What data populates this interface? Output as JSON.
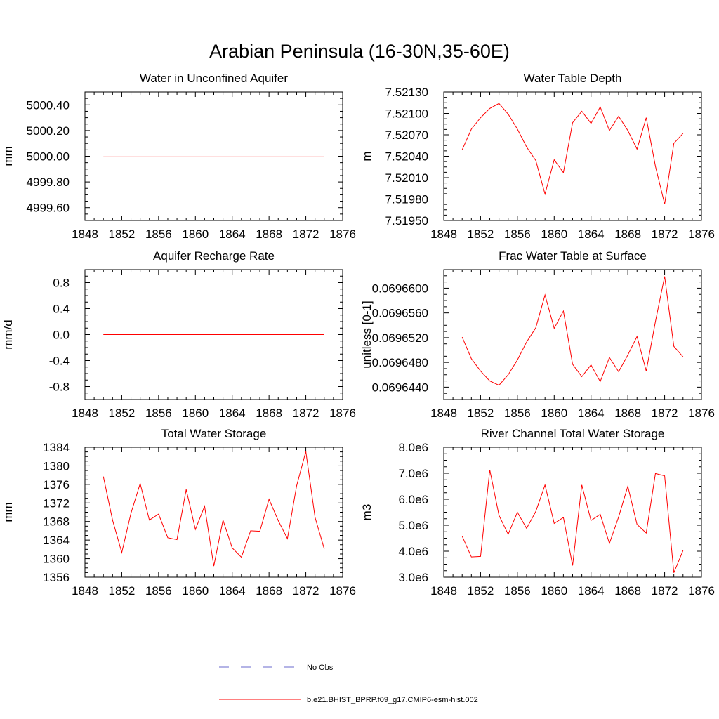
{
  "figure": {
    "title": "Arabian Peninsula (16-30N,35-60E)"
  },
  "legend": {
    "items": [
      {
        "label": "No Obs",
        "color": "#6a6acd",
        "dash": true
      },
      {
        "label": "b.e21.BHIST_BPRP.f09_g17.CMIP6-esm-hist.002",
        "color": "#ff0000",
        "dash": false
      }
    ]
  },
  "chart_data": [
    {
      "type": "line",
      "title": "Water in Unconfined Aquifer",
      "xlabel": "",
      "ylabel": "mm",
      "xlim": [
        1848,
        1876
      ],
      "ylim": [
        4999.5,
        5000.5
      ],
      "xticks": [
        1848,
        1852,
        1856,
        1860,
        1864,
        1868,
        1872,
        1876
      ],
      "yticks": [
        4999.6,
        4999.8,
        5000.0,
        5000.2,
        5000.4
      ],
      "ytick_labels": [
        "4999.60",
        "4999.80",
        "5000.00",
        "5000.20",
        "5000.40"
      ],
      "x": [
        1850,
        1851,
        1852,
        1853,
        1854,
        1855,
        1856,
        1857,
        1858,
        1859,
        1860,
        1861,
        1862,
        1863,
        1864,
        1865,
        1866,
        1867,
        1868,
        1869,
        1870,
        1871,
        1872,
        1873,
        1874
      ],
      "series": [
        {
          "values": [
            4999.995,
            4999.995,
            4999.995,
            4999.995,
            4999.995,
            4999.995,
            4999.995,
            4999.995,
            4999.995,
            4999.995,
            4999.995,
            4999.995,
            4999.995,
            4999.995,
            4999.995,
            4999.995,
            4999.995,
            4999.995,
            4999.995,
            4999.995,
            4999.995,
            4999.995,
            4999.995,
            4999.995,
            4999.995
          ],
          "color": "#ff0000"
        }
      ]
    },
    {
      "type": "line",
      "title": "Water Table Depth",
      "xlabel": "",
      "ylabel": "m",
      "xlim": [
        1848,
        1876
      ],
      "ylim": [
        7.5195,
        7.5213
      ],
      "xticks": [
        1848,
        1852,
        1856,
        1860,
        1864,
        1868,
        1872,
        1876
      ],
      "yticks": [
        7.5195,
        7.5198,
        7.5201,
        7.5204,
        7.5207,
        7.521,
        7.5213
      ],
      "ytick_labels": [
        "7.51950",
        "7.51980",
        "7.52010",
        "7.52040",
        "7.52070",
        "7.52100",
        "7.52130"
      ],
      "x": [
        1850,
        1851,
        1852,
        1853,
        1854,
        1855,
        1856,
        1857,
        1858,
        1859,
        1860,
        1861,
        1862,
        1863,
        1864,
        1865,
        1866,
        1867,
        1868,
        1869,
        1870,
        1871,
        1872,
        1873,
        1874
      ],
      "series": [
        {
          "values": [
            7.52049,
            7.52078,
            7.52094,
            7.52107,
            7.52114,
            7.52099,
            7.52078,
            7.52053,
            7.52034,
            7.51987,
            7.52035,
            7.52017,
            7.52087,
            7.52103,
            7.52086,
            7.52109,
            7.52076,
            7.52096,
            7.52076,
            7.5205,
            7.52094,
            7.52026,
            7.51973,
            7.52058,
            7.52072
          ],
          "color": "#ff0000"
        }
      ]
    },
    {
      "type": "line",
      "title": "Aquifer Recharge Rate",
      "xlabel": "",
      "ylabel": "mm/d",
      "xlim": [
        1848,
        1876
      ],
      "ylim": [
        -1.0,
        1.0
      ],
      "xticks": [
        1848,
        1852,
        1856,
        1860,
        1864,
        1868,
        1872,
        1876
      ],
      "yticks": [
        -0.8,
        -0.4,
        0.0,
        0.4,
        0.8
      ],
      "ytick_labels": [
        "-0.8",
        "-0.4",
        "0.0",
        "0.4",
        "0.8"
      ],
      "x": [
        1850,
        1851,
        1852,
        1853,
        1854,
        1855,
        1856,
        1857,
        1858,
        1859,
        1860,
        1861,
        1862,
        1863,
        1864,
        1865,
        1866,
        1867,
        1868,
        1869,
        1870,
        1871,
        1872,
        1873,
        1874
      ],
      "series": [
        {
          "values": [
            0,
            0,
            0,
            0,
            0,
            0,
            0,
            0,
            0,
            0,
            0,
            0,
            0,
            0,
            0,
            0,
            0,
            0,
            0,
            0,
            0,
            0,
            0,
            0,
            0
          ],
          "color": "#ff0000"
        }
      ]
    },
    {
      "type": "line",
      "title": "Frac Water Table at Surface",
      "xlabel": "",
      "ylabel": "unitless [0-1]",
      "xlim": [
        1848,
        1876
      ],
      "ylim": [
        0.069642,
        0.069663
      ],
      "xticks": [
        1848,
        1852,
        1856,
        1860,
        1864,
        1868,
        1872,
        1876
      ],
      "yticks": [
        0.069644,
        0.069648,
        0.069652,
        0.069656,
        0.06966
      ],
      "ytick_labels": [
        "0.0696440",
        "0.0696480",
        "0.0696520",
        "0.0696560",
        "0.0696600"
      ],
      "x": [
        1850,
        1851,
        1852,
        1853,
        1854,
        1855,
        1856,
        1857,
        1858,
        1859,
        1860,
        1861,
        1862,
        1863,
        1864,
        1865,
        1866,
        1867,
        1868,
        1869,
        1870,
        1871,
        1872,
        1873,
        1874
      ],
      "series": [
        {
          "values": [
            0.0696521,
            0.0696486,
            0.0696466,
            0.069645,
            0.0696443,
            0.069646,
            0.0696484,
            0.0696513,
            0.0696536,
            0.0696589,
            0.0696535,
            0.0696563,
            0.0696477,
            0.0696457,
            0.0696476,
            0.0696449,
            0.0696488,
            0.0696465,
            0.0696492,
            0.0696522,
            0.0696466,
            0.0696546,
            0.0696619,
            0.0696506,
            0.0696489
          ],
          "color": "#ff0000"
        }
      ]
    },
    {
      "type": "line",
      "title": "Total Water Storage",
      "xlabel": "",
      "ylabel": "mm",
      "xlim": [
        1848,
        1876
      ],
      "ylim": [
        1356,
        1384
      ],
      "xticks": [
        1848,
        1852,
        1856,
        1860,
        1864,
        1868,
        1872,
        1876
      ],
      "yticks": [
        1356,
        1360,
        1364,
        1368,
        1372,
        1376,
        1380,
        1384
      ],
      "ytick_labels": [
        "1356",
        "1360",
        "1364",
        "1368",
        "1372",
        "1376",
        "1380",
        "1384"
      ],
      "x": [
        1850,
        1851,
        1852,
        1853,
        1854,
        1855,
        1856,
        1857,
        1858,
        1859,
        1860,
        1861,
        1862,
        1863,
        1864,
        1865,
        1866,
        1867,
        1868,
        1869,
        1870,
        1871,
        1872,
        1873,
        1874
      ],
      "series": [
        {
          "values": [
            1377.7,
            1368.3,
            1361.3,
            1369.8,
            1376.2,
            1368.3,
            1369.6,
            1364.5,
            1364.1,
            1374.9,
            1366.3,
            1371.3,
            1358.4,
            1368.3,
            1362.3,
            1360.3,
            1366.0,
            1365.9,
            1372.8,
            1368.2,
            1364.3,
            1375.7,
            1383.1,
            1368.9,
            1362.1
          ],
          "color": "#ff0000"
        }
      ]
    },
    {
      "type": "line",
      "title": "River Channel Total Water Storage",
      "xlabel": "",
      "ylabel": "m3",
      "xlim": [
        1848,
        1876
      ],
      "ylim": [
        3000000,
        8000000
      ],
      "xticks": [
        1848,
        1852,
        1856,
        1860,
        1864,
        1868,
        1872,
        1876
      ],
      "yticks": [
        3000000,
        4000000,
        5000000,
        6000000,
        7000000,
        8000000
      ],
      "ytick_labels": [
        "3.0e6",
        "4.0e6",
        "5.0e6",
        "6.0e6",
        "7.0e6",
        "8.0e6"
      ],
      "x": [
        1850,
        1851,
        1852,
        1853,
        1854,
        1855,
        1856,
        1857,
        1858,
        1859,
        1860,
        1861,
        1862,
        1863,
        1864,
        1865,
        1866,
        1867,
        1868,
        1869,
        1870,
        1871,
        1872,
        1873,
        1874
      ],
      "series": [
        {
          "values": [
            4580000,
            3780000,
            3800000,
            7130000,
            5380000,
            4650000,
            5500000,
            4880000,
            5530000,
            6550000,
            5070000,
            5300000,
            3450000,
            6550000,
            5180000,
            5420000,
            4300000,
            5320000,
            6500000,
            5030000,
            4700000,
            6990000,
            6900000,
            3170000,
            4030000
          ],
          "color": "#ff0000"
        }
      ]
    }
  ]
}
